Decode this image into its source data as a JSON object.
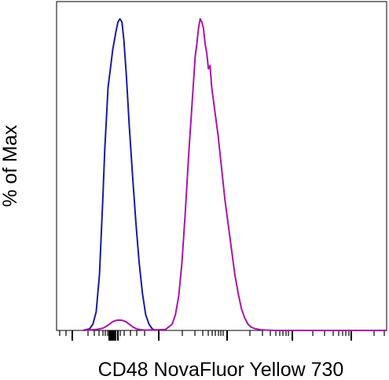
{
  "chart_data": {
    "type": "line",
    "title": "",
    "xlabel": "CD48 NovaFluor Yellow 730",
    "ylabel": "% of Max",
    "x_scale": "log (biexponential), no tick labels",
    "xlim": [
      0,
      100
    ],
    "ylim": [
      0,
      100
    ],
    "grid": false,
    "legend": "none",
    "series": [
      {
        "color": "#1a1aa6",
        "points": [
          [
            8,
            0
          ],
          [
            10,
            0.5
          ],
          [
            11,
            2
          ],
          [
            12,
            6
          ],
          [
            13,
            18
          ],
          [
            14,
            42
          ],
          [
            14.6,
            58
          ],
          [
            15,
            66
          ],
          [
            15.6,
            78
          ],
          [
            16.2,
            83
          ],
          [
            17,
            90
          ],
          [
            18,
            96
          ],
          [
            18.6,
            99
          ],
          [
            19.2,
            100
          ],
          [
            19.8,
            99
          ],
          [
            20.4,
            93
          ],
          [
            21.2,
            81
          ],
          [
            22,
            66
          ],
          [
            23,
            50
          ],
          [
            24,
            35
          ],
          [
            25,
            22
          ],
          [
            26,
            12
          ],
          [
            27,
            5
          ],
          [
            28,
            2
          ],
          [
            29,
            0.5
          ],
          [
            30,
            0
          ]
        ]
      },
      {
        "color": "#aa14aa",
        "points": [
          [
            8,
            0
          ],
          [
            12,
            0.3
          ],
          [
            14,
            0.7
          ],
          [
            15,
            1.3
          ],
          [
            16,
            2
          ],
          [
            17,
            2.8
          ],
          [
            18,
            3.2
          ],
          [
            19,
            3.3
          ],
          [
            20,
            3.2
          ],
          [
            21,
            2.8
          ],
          [
            22,
            2
          ],
          [
            23,
            1.2
          ],
          [
            24,
            0.6
          ],
          [
            25,
            0.3
          ],
          [
            27,
            0.1
          ],
          [
            30,
            0.2
          ],
          [
            33,
            0.3
          ],
          [
            35,
            2
          ],
          [
            36,
            5
          ],
          [
            37,
            11
          ],
          [
            38,
            22
          ],
          [
            39,
            38
          ],
          [
            40,
            56
          ],
          [
            41,
            72
          ],
          [
            41.5,
            80
          ],
          [
            42,
            88
          ],
          [
            42.5,
            92
          ],
          [
            43,
            97
          ],
          [
            43.5,
            100
          ],
          [
            44,
            99
          ],
          [
            44.5,
            97
          ],
          [
            45,
            92
          ],
          [
            45.5,
            89
          ],
          [
            46,
            84
          ],
          [
            46.5,
            85
          ],
          [
            47,
            78
          ],
          [
            48,
            70
          ],
          [
            49,
            62
          ],
          [
            50,
            52
          ],
          [
            51,
            42
          ],
          [
            52,
            34
          ],
          [
            53,
            26
          ],
          [
            54,
            18
          ],
          [
            55,
            12
          ],
          [
            56,
            7
          ],
          [
            57,
            4
          ],
          [
            58,
            2
          ],
          [
            59,
            1
          ],
          [
            60,
            0.6
          ],
          [
            62,
            0.2
          ],
          [
            66,
            0
          ],
          [
            100,
            0
          ]
        ]
      }
    ]
  }
}
